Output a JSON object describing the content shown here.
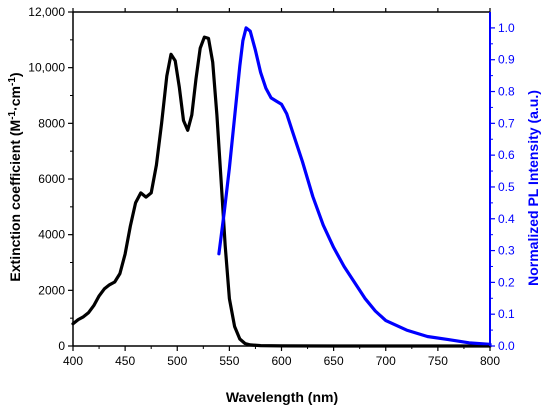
{
  "chart_data": {
    "type": "line",
    "xlabel": "Wavelength (nm)",
    "ylabel_left_text": "Extinction coefficient (M",
    "ylabel_left_sup1": "-1",
    "ylabel_left_mid": "·cm",
    "ylabel_left_sup2": "-1",
    "ylabel_left_end": ")",
    "ylabel_right": "Normalized PL Intensity (a.u.)",
    "xlim": [
      400,
      800
    ],
    "ylim_left": [
      0,
      12000
    ],
    "ylim_right": [
      0,
      1.05
    ],
    "x_ticks": [
      "400",
      "450",
      "500",
      "550",
      "600",
      "650",
      "700",
      "750",
      "800"
    ],
    "y_left_ticks": [
      "0",
      "2000",
      "4000",
      "6000",
      "8000",
      "10,000",
      "12,000"
    ],
    "y_right_ticks": [
      "0.0",
      "0.1",
      "0.2",
      "0.3",
      "0.4",
      "0.5",
      "0.6",
      "0.7",
      "0.8",
      "0.9",
      "1.0"
    ],
    "series": [
      {
        "color": "#000000",
        "axis": "left",
        "x": [
          400,
          405,
          410,
          415,
          420,
          425,
          430,
          435,
          440,
          445,
          450,
          455,
          460,
          465,
          470,
          475,
          480,
          485,
          490,
          494,
          498,
          502,
          506,
          510,
          514,
          518,
          522,
          526,
          530,
          534,
          538,
          542,
          546,
          550,
          555,
          560,
          565,
          570,
          580,
          600,
          650,
          700,
          750,
          800
        ],
        "y": [
          800,
          950,
          1050,
          1200,
          1450,
          1800,
          2050,
          2200,
          2300,
          2600,
          3300,
          4300,
          5150,
          5500,
          5350,
          5500,
          6500,
          8000,
          9700,
          10480,
          10250,
          9300,
          8100,
          7750,
          8300,
          9600,
          10700,
          11100,
          11050,
          10200,
          8300,
          6000,
          3600,
          1700,
          700,
          250,
          90,
          40,
          15,
          5,
          0,
          0,
          0,
          0
        ]
      },
      {
        "color": "#0000ff",
        "axis": "right",
        "x": [
          540,
          545,
          550,
          555,
          560,
          563,
          566,
          570,
          575,
          580,
          585,
          590,
          595,
          600,
          605,
          610,
          620,
          630,
          640,
          650,
          660,
          670,
          680,
          690,
          700,
          720,
          740,
          760,
          780,
          800
        ],
        "y": [
          0.29,
          0.42,
          0.56,
          0.72,
          0.88,
          0.96,
          1.0,
          0.99,
          0.93,
          0.86,
          0.81,
          0.78,
          0.77,
          0.76,
          0.73,
          0.68,
          0.58,
          0.47,
          0.38,
          0.31,
          0.25,
          0.2,
          0.15,
          0.11,
          0.08,
          0.05,
          0.03,
          0.02,
          0.01,
          0.005
        ]
      }
    ]
  }
}
